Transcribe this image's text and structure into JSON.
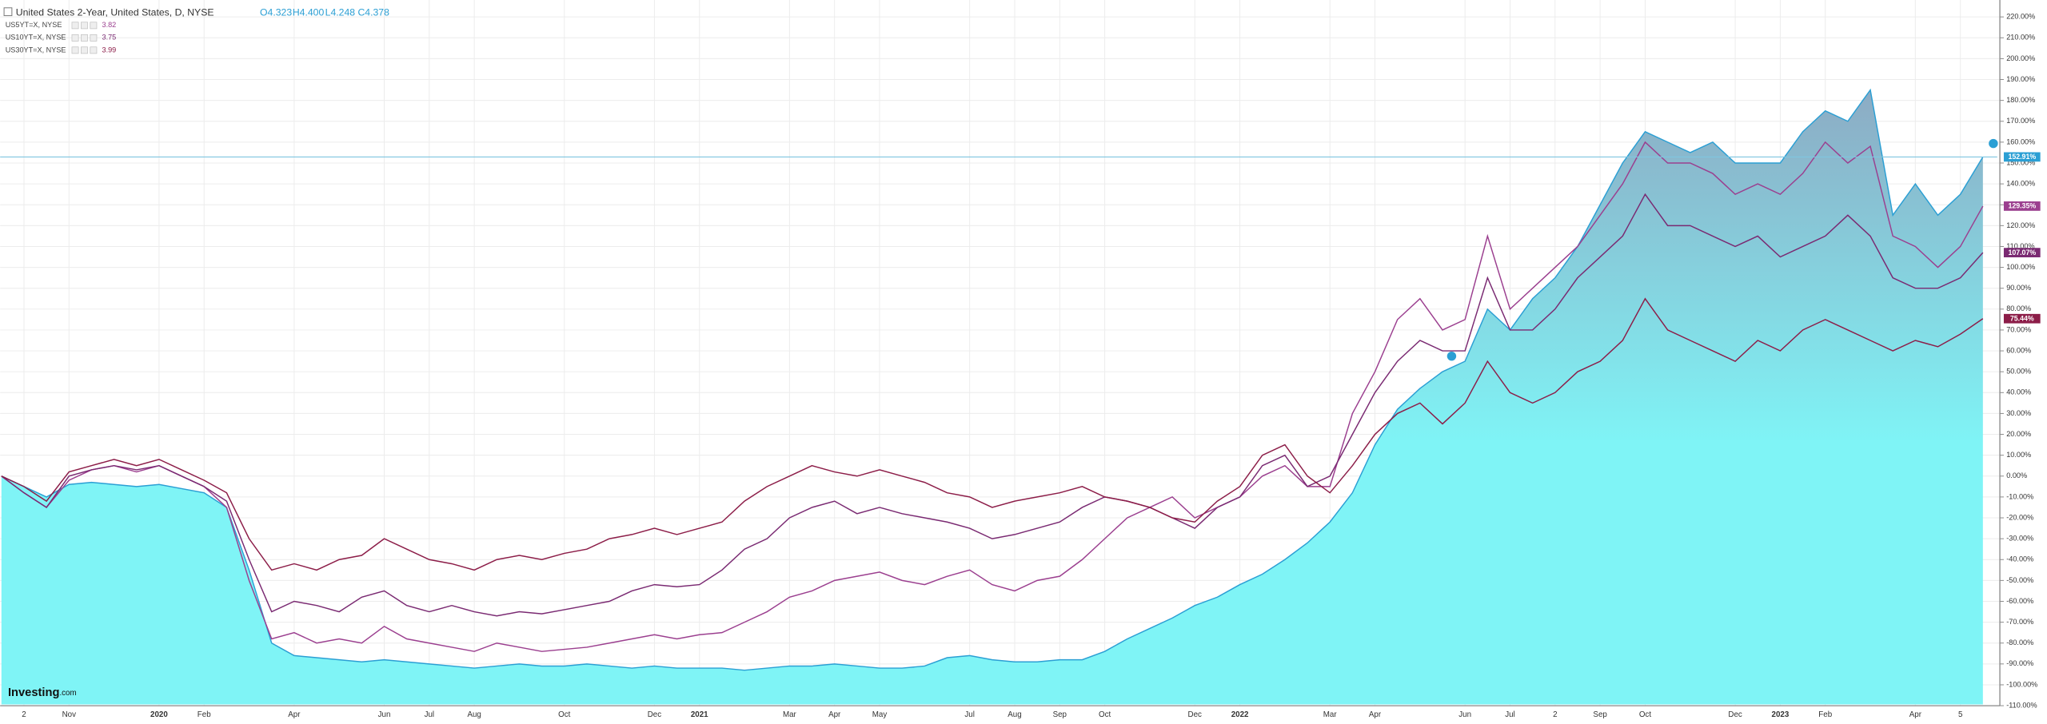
{
  "chart_data": {
    "type": "line",
    "grid": true,
    "ylim": [
      -109.4,
      228.1
    ],
    "yticks": [
      {
        "value": 220,
        "label": "220.00%"
      },
      {
        "value": 210,
        "label": "210.00%"
      },
      {
        "value": 200,
        "label": "200.00%"
      },
      {
        "value": 190,
        "label": "190.00%"
      },
      {
        "value": 180,
        "label": "180.00%"
      },
      {
        "value": 170,
        "label": "170.00%"
      },
      {
        "value": 160,
        "label": "160.00%"
      },
      {
        "value": 150,
        "label": "150.00%"
      },
      {
        "value": 140,
        "label": "140.00%"
      },
      {
        "value": 130,
        "label": "130.00%"
      },
      {
        "value": 120,
        "label": "120.00%"
      },
      {
        "value": 110,
        "label": "110.00%"
      },
      {
        "value": 100,
        "label": "100.00%"
      },
      {
        "value": 90,
        "label": "90.00%"
      },
      {
        "value": 80,
        "label": "80.00%"
      },
      {
        "value": 70,
        "label": "70.00%"
      },
      {
        "value": 60,
        "label": "60.00%"
      },
      {
        "value": 50,
        "label": "50.00%"
      },
      {
        "value": 40,
        "label": "40.00%"
      },
      {
        "value": 30,
        "label": "30.00%"
      },
      {
        "value": 20,
        "label": "20.00%"
      },
      {
        "value": 10,
        "label": "10.00%"
      },
      {
        "value": 0,
        "label": "0.00%"
      },
      {
        "value": -10,
        "label": "-10.00%"
      },
      {
        "value": -20,
        "label": "-20.00%"
      },
      {
        "value": -30,
        "label": "-30.00%"
      },
      {
        "value": -40,
        "label": "-40.00%"
      },
      {
        "value": -50,
        "label": "-50.00%"
      },
      {
        "value": -60,
        "label": "-60.00%"
      },
      {
        "value": -70,
        "label": "-70.00%"
      },
      {
        "value": -80,
        "label": "-80.00%"
      },
      {
        "value": -90,
        "label": "-90.00%"
      },
      {
        "value": -100,
        "label": "-100.00%"
      },
      {
        "value": -110,
        "label": "-110.00%"
      }
    ],
    "ohlc": [
      "O4.323",
      "H4.400",
      "L4.248",
      "C4.378"
    ],
    "logo": [
      "Investing",
      ".com"
    ],
    "categories": [
      null,
      "2",
      null,
      "Nov",
      null,
      null,
      null,
      "2020",
      null,
      "Feb",
      null,
      null,
      null,
      "Apr",
      null,
      null,
      null,
      "Jun",
      null,
      "Jul",
      null,
      "Aug",
      null,
      null,
      null,
      "Oct",
      null,
      null,
      null,
      "Dec",
      null,
      "2021",
      null,
      null,
      null,
      "Mar",
      null,
      "Apr",
      null,
      "May",
      null,
      null,
      null,
      "Jul",
      null,
      "Aug",
      null,
      "Sep",
      null,
      "Oct",
      null,
      null,
      null,
      "Dec",
      null,
      "2022",
      null,
      null,
      null,
      "Mar",
      null,
      "Apr",
      null,
      null,
      null,
      "Jun",
      null,
      "Jul",
      null,
      "2",
      null,
      "Sep",
      null,
      "Oct",
      null,
      null,
      null,
      "Dec",
      null,
      "2023",
      null,
      "Feb",
      null,
      null,
      null,
      "Apr",
      null,
      "5",
      null
    ],
    "series": [
      {
        "name": "United States 2-Year, United States, D, NYSE",
        "area": true,
        "color": "#2b9fd4",
        "fill_colors": [
          "#8ea3be",
          "#7ff4f6"
        ],
        "last_label": "152.91%",
        "values": [
          0,
          -5,
          -10,
          -4,
          -3,
          -4,
          -5,
          -4,
          -6,
          -8,
          -15,
          -45,
          -80,
          -86,
          -87,
          -88,
          -89,
          -88,
          -89,
          -90,
          -91,
          -92,
          -91,
          -90,
          -91,
          -91,
          -90,
          -91,
          -92,
          -91,
          -92,
          -92,
          -92,
          -93,
          -92,
          -91,
          -91,
          -90,
          -91,
          -92,
          -92,
          -91,
          -87,
          -86,
          -88,
          -89,
          -89,
          -88,
          -88,
          -84,
          -78,
          -73,
          -68,
          -62,
          -58,
          -52,
          -47,
          -40,
          -32,
          -22,
          -8,
          15,
          32,
          42,
          50,
          55,
          80,
          70,
          85,
          95,
          110,
          130,
          150,
          165,
          160,
          155,
          160,
          150,
          150,
          150,
          165,
          175,
          170,
          185,
          125,
          140,
          125,
          135,
          152.91
        ]
      },
      {
        "name": "US5YT=X, NYSE",
        "legend_value": 3.82,
        "color": "#9b3f8f",
        "last_label": "129.35%",
        "values": [
          0,
          -8,
          -15,
          -2,
          3,
          5,
          2,
          5,
          0,
          -5,
          -15,
          -50,
          -78,
          -75,
          -80,
          -78,
          -80,
          -72,
          -78,
          -80,
          -82,
          -84,
          -80,
          -82,
          -84,
          -83,
          -82,
          -80,
          -78,
          -76,
          -78,
          -76,
          -75,
          -70,
          -65,
          -58,
          -55,
          -50,
          -48,
          -46,
          -50,
          -52,
          -48,
          -45,
          -52,
          -55,
          -50,
          -48,
          -40,
          -30,
          -20,
          -15,
          -10,
          -20,
          -15,
          -10,
          0,
          5,
          -5,
          -5,
          30,
          50,
          75,
          85,
          70,
          75,
          115,
          80,
          90,
          100,
          110,
          125,
          140,
          160,
          150,
          150,
          145,
          135,
          140,
          135,
          145,
          160,
          150,
          158,
          115,
          110,
          100,
          110,
          129.35
        ]
      },
      {
        "name": "US10YT=X, NYSE",
        "legend_value": 3.75,
        "color": "#7a2a72",
        "last_label": "107.07%",
        "values": [
          0,
          -8,
          -15,
          0,
          3,
          5,
          3,
          5,
          0,
          -5,
          -12,
          -40,
          -65,
          -60,
          -62,
          -65,
          -58,
          -55,
          -62,
          -65,
          -62,
          -65,
          -67,
          -65,
          -66,
          -64,
          -62,
          -60,
          -55,
          -52,
          -53,
          -52,
          -45,
          -35,
          -30,
          -20,
          -15,
          -12,
          -18,
          -15,
          -18,
          -20,
          -22,
          -25,
          -30,
          -28,
          -25,
          -22,
          -15,
          -10,
          -12,
          -15,
          -20,
          -25,
          -15,
          -10,
          5,
          10,
          -5,
          0,
          20,
          40,
          55,
          65,
          60,
          60,
          95,
          70,
          70,
          80,
          95,
          105,
          115,
          135,
          120,
          120,
          115,
          110,
          115,
          105,
          110,
          115,
          125,
          115,
          95,
          90,
          90,
          95,
          107.07
        ]
      },
      {
        "name": "US30YT=X, NYSE",
        "legend_value": 3.99,
        "color": "#8c1d48",
        "last_label": "75.44%",
        "values": [
          0,
          -5,
          -12,
          2,
          5,
          8,
          5,
          8,
          3,
          -2,
          -8,
          -30,
          -45,
          -42,
          -45,
          -40,
          -38,
          -30,
          -35,
          -40,
          -42,
          -45,
          -40,
          -38,
          -40,
          -37,
          -35,
          -30,
          -28,
          -25,
          -28,
          -25,
          -22,
          -12,
          -5,
          0,
          5,
          2,
          0,
          3,
          0,
          -3,
          -8,
          -10,
          -15,
          -12,
          -10,
          -8,
          -5,
          -10,
          -12,
          -15,
          -20,
          -22,
          -12,
          -5,
          10,
          15,
          0,
          -8,
          5,
          20,
          30,
          35,
          25,
          35,
          55,
          40,
          35,
          40,
          50,
          55,
          65,
          85,
          70,
          65,
          60,
          55,
          65,
          60,
          70,
          75,
          70,
          65,
          60,
          65,
          62,
          68,
          75.44
        ]
      }
    ]
  }
}
